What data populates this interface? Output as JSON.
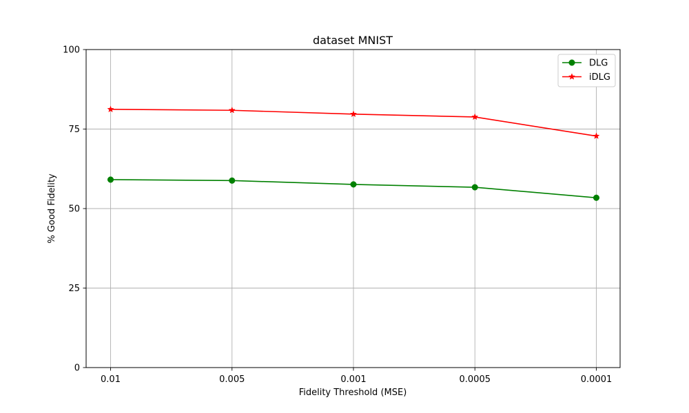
{
  "chart_data": {
    "type": "line",
    "title": "dataset MNIST",
    "xlabel": "Fidelity Threshold (MSE)",
    "ylabel": "% Good Fidelity",
    "categories": [
      "0.01",
      "0.005",
      "0.001",
      "0.0005",
      "0.0001"
    ],
    "ylim": [
      0,
      100
    ],
    "yticks": [
      "0",
      "25",
      "50",
      "75",
      "100"
    ],
    "grid": true,
    "legend_position": "top-right",
    "series": [
      {
        "name": "DLG",
        "values": [
          59.1,
          58.8,
          57.6,
          56.7,
          53.4
        ],
        "color": "#008000",
        "marker": "circle"
      },
      {
        "name": "iDLG",
        "values": [
          81.2,
          80.9,
          79.7,
          78.8,
          72.8
        ],
        "color": "#ff0000",
        "marker": "star"
      }
    ]
  }
}
